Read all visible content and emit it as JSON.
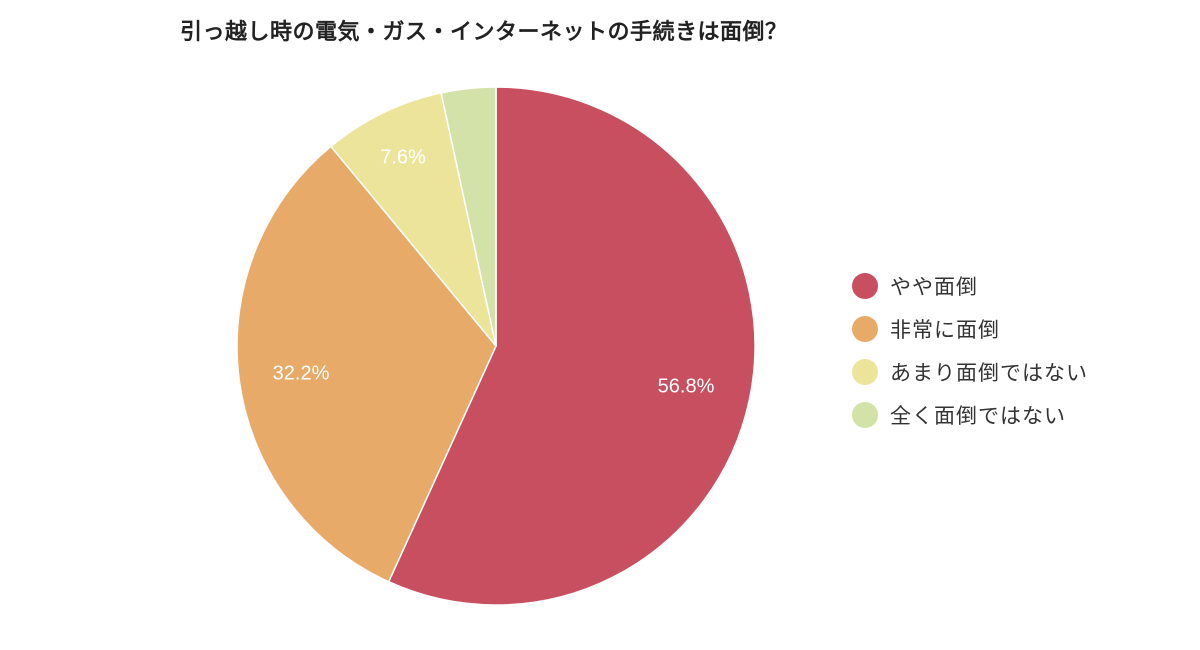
{
  "chart_data": {
    "type": "pie",
    "title": "引っ越し時の電気・ガス・インターネットの手続きは面倒？",
    "categories": [
      "やや面倒",
      "非常に面倒",
      "あまり面倒ではない",
      "全く面倒ではない"
    ],
    "values": [
      56.8,
      32.2,
      7.6,
      3.4
    ],
    "labels": [
      "56.8%",
      "32.2%",
      "7.6%",
      ""
    ],
    "colors": [
      "#c84f5f",
      "#e8aa68",
      "#ede49c",
      "#d3e2a8"
    ],
    "start_angle_deg": 0,
    "direction": "clockwise",
    "legend_position": "right",
    "grid": false
  },
  "title": "引っ越し時の電気・ガス・インターネットの手続きは面倒？",
  "legend": {
    "items": [
      {
        "label": "やや面倒",
        "color": "#c84f5f"
      },
      {
        "label": "非常に面倒",
        "color": "#e8aa68"
      },
      {
        "label": "あまり面倒ではない",
        "color": "#ede49c"
      },
      {
        "label": "全く面倒ではない",
        "color": "#d3e2a8"
      }
    ]
  },
  "slice_labels": [
    "56.8%",
    "32.2%",
    "7.6%",
    ""
  ]
}
